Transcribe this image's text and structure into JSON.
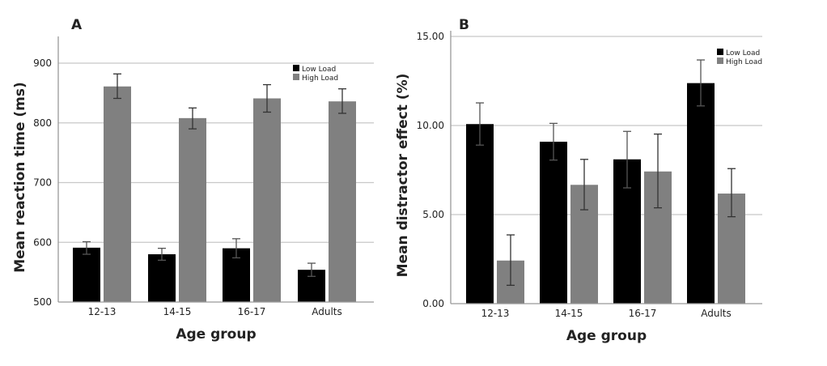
{
  "chart_data": [
    {
      "panel_label": "A",
      "type": "bar",
      "categories": [
        "12-13",
        "14-15",
        "16-17",
        "Adults"
      ],
      "series": [
        {
          "name": "Low Load",
          "color": "#000000",
          "values": [
            591,
            580,
            590,
            554
          ],
          "error_upper": [
            601,
            590,
            606,
            565
          ],
          "error_lower": [
            580,
            570,
            574,
            543
          ]
        },
        {
          "name": "High Load",
          "color": "#808080",
          "values": [
            861,
            808,
            841,
            836
          ],
          "error_upper": [
            882,
            825,
            864,
            857
          ],
          "error_lower": [
            841,
            790,
            818,
            816
          ]
        }
      ],
      "xlabel": "Age group",
      "ylabel": "Mean reaction time (ms)",
      "ylim": [
        500,
        950
      ],
      "yticks": [
        "500",
        "600",
        "700",
        "800",
        "900"
      ],
      "ytick_values": [
        500,
        600,
        700,
        800,
        900
      ],
      "grid": true,
      "legend_position": "top-right"
    },
    {
      "panel_label": "B",
      "type": "bar",
      "categories": [
        "12-13",
        "14-15",
        "16-17",
        "Adults"
      ],
      "series": [
        {
          "name": "Low Load",
          "color": "#000000",
          "values": [
            10.08,
            9.09,
            8.1,
            12.38
          ],
          "error_upper": [
            11.27,
            10.12,
            9.67,
            13.68
          ],
          "error_lower": [
            8.9,
            8.06,
            6.5,
            11.1
          ]
        },
        {
          "name": "High Load",
          "color": "#808080",
          "values": [
            2.42,
            6.67,
            7.42,
            6.18
          ],
          "error_upper": [
            3.86,
            8.1,
            9.52,
            7.58
          ],
          "error_lower": [
            1.03,
            5.27,
            5.38,
            4.88
          ]
        }
      ],
      "xlabel": "Age group",
      "ylabel": "Mean distractor effect (%)",
      "ylim": [
        0,
        15.5
      ],
      "yticks": [
        "0.00",
        "5.00",
        "10.00",
        "15.00"
      ],
      "ytick_values": [
        0,
        5,
        10,
        15
      ],
      "grid": true,
      "legend_position": "top-right"
    }
  ]
}
